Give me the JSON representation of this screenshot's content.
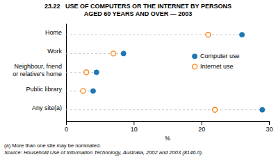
{
  "chart_data": {
    "type": "dot",
    "orientation": "horizontal",
    "title": "23.22   USE OF COMPUTERS OR THE INTERNET BY PERSONS\nAGED 60 YEARS AND OVER — 2003",
    "categories": [
      "Home",
      "Work",
      "Neighbour, friend\nor relative's home",
      "Public library",
      "Any site(a)"
    ],
    "series": [
      {
        "name": "Computer use",
        "marker": "circle",
        "values": [
          26,
          8.5,
          4.5,
          4.0,
          29
        ]
      },
      {
        "name": "Internet use",
        "marker": "circle-open",
        "values": [
          21,
          7.0,
          3.0,
          2.5,
          22
        ]
      }
    ],
    "x_label": "%",
    "xlim": [
      0,
      30
    ],
    "xticks": [
      0,
      10,
      20,
      30
    ],
    "grid": false,
    "legend": "right",
    "annotations": [
      "(a) More than one site may be nominated.",
      "Source: Household Use of Information Technology, Australia, 2002 and 2003 (8146.0)."
    ]
  }
}
